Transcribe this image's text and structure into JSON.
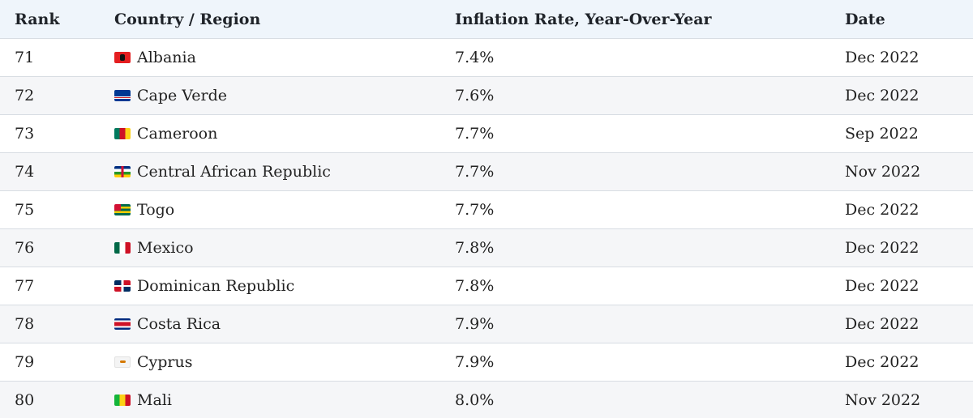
{
  "table": {
    "headers": {
      "rank": "Rank",
      "country": "Country / Region",
      "rate": "Inflation Rate, Year-Over-Year",
      "date": "Date"
    },
    "rows": [
      {
        "rank": "71",
        "country": "Albania",
        "flag_icon": "albania-flag-icon",
        "rate": "7.4%",
        "date": "Dec 2022"
      },
      {
        "rank": "72",
        "country": "Cape Verde",
        "flag_icon": "cape-verde-flag-icon",
        "rate": "7.6%",
        "date": "Dec 2022"
      },
      {
        "rank": "73",
        "country": "Cameroon",
        "flag_icon": "cameroon-flag-icon",
        "rate": "7.7%",
        "date": "Sep 2022"
      },
      {
        "rank": "74",
        "country": "Central African Republic",
        "flag_icon": "central-african-republic-flag-icon",
        "rate": "7.7%",
        "date": "Nov 2022"
      },
      {
        "rank": "75",
        "country": "Togo",
        "flag_icon": "togo-flag-icon",
        "rate": "7.7%",
        "date": "Dec 2022"
      },
      {
        "rank": "76",
        "country": "Mexico",
        "flag_icon": "mexico-flag-icon",
        "rate": "7.8%",
        "date": "Dec 2022"
      },
      {
        "rank": "77",
        "country": "Dominican Republic",
        "flag_icon": "dominican-republic-flag-icon",
        "rate": "7.8%",
        "date": "Dec 2022"
      },
      {
        "rank": "78",
        "country": "Costa Rica",
        "flag_icon": "costa-rica-flag-icon",
        "rate": "7.9%",
        "date": "Dec 2022"
      },
      {
        "rank": "79",
        "country": "Cyprus",
        "flag_icon": "cyprus-flag-icon",
        "rate": "7.9%",
        "date": "Dec 2022"
      },
      {
        "rank": "80",
        "country": "Mali",
        "flag_icon": "mali-flag-icon",
        "rate": "8.0%",
        "date": "Nov 2022"
      }
    ]
  },
  "colors": {
    "header_background": "#eff5fb",
    "stripe_background": "#f5f6f8",
    "row_border": "#d8dde3",
    "text": "#222222"
  }
}
